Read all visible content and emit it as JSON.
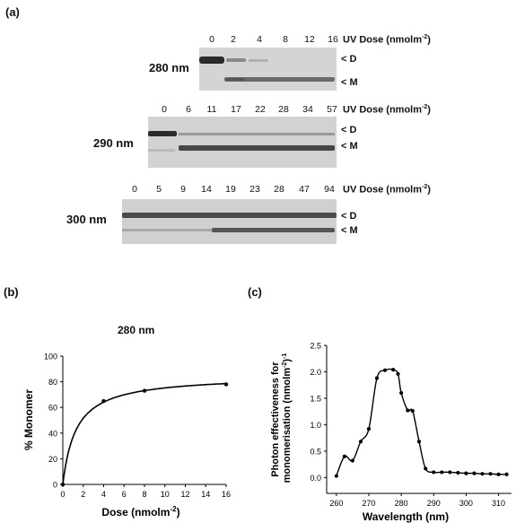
{
  "panel_a": {
    "label": "(a)",
    "uv_label": "UV Dose (nmolm",
    "uv_sup": "-2",
    "uv_close": ")",
    "band_d": "< D",
    "band_m": "< M",
    "gels": [
      {
        "wavelength": "280 nm",
        "doses": [
          "0",
          "2",
          "4",
          "8",
          "12",
          "16"
        ]
      },
      {
        "wavelength": "290 nm",
        "doses": [
          "0",
          "6",
          "11",
          "17",
          "22",
          "28",
          "34",
          "57"
        ]
      },
      {
        "wavelength": "300 nm",
        "doses": [
          "0",
          "5",
          "9",
          "14",
          "19",
          "23",
          "28",
          "47",
          "94"
        ]
      }
    ]
  },
  "panel_b": {
    "label": "(b)",
    "title": "280 nm",
    "ylabel": "% Monomer",
    "xlabel_main": "Dose (nmolm",
    "xlabel_sup": "-2",
    "xlabel_close": ")"
  },
  "panel_c": {
    "label": "(c)",
    "ylabel_line1": "Photon effectiveness for",
    "ylabel_line2": "monomerisation (nmolm",
    "ylabel_sup": "-2",
    "ylabel_close": ")",
    "ylabel_sup2": "-1",
    "xlabel": "Wavelength (nm)"
  },
  "chart_data": [
    {
      "type": "scatter",
      "title": "280 nm",
      "xlabel": "Dose (nmolm-2)",
      "ylabel": "% Monomer",
      "x": [
        0,
        4,
        8,
        16
      ],
      "y": [
        0,
        65,
        73,
        78
      ],
      "xlim": [
        0,
        16
      ],
      "ylim": [
        0,
        100
      ],
      "xticks": [
        "0",
        "2",
        "4",
        "6",
        "8",
        "10",
        "12",
        "14",
        "16"
      ],
      "yticks": [
        "0",
        "20",
        "40",
        "60",
        "80",
        "100"
      ],
      "fit": "hyperbolic saturation curve through points",
      "grid": false
    },
    {
      "type": "line",
      "xlabel": "Wavelength (nm)",
      "ylabel": "Photon effectiveness for monomerisation (nmolm-2)-1",
      "x": [
        260,
        262.5,
        265,
        267.5,
        270,
        272.5,
        275,
        277.5,
        279,
        280,
        282,
        283.5,
        285.5,
        287.5,
        290,
        292.5,
        295,
        297.5,
        300,
        302.5,
        305,
        307.5,
        310,
        312.5
      ],
      "y": [
        0.03,
        0.4,
        0.32,
        0.68,
        0.92,
        1.88,
        2.03,
        2.04,
        1.96,
        1.6,
        1.27,
        1.26,
        0.68,
        0.17,
        0.1,
        0.1,
        0.1,
        0.09,
        0.08,
        0.08,
        0.07,
        0.07,
        0.06,
        0.06
      ],
      "xlim": [
        257,
        314
      ],
      "ylim": [
        -0.3,
        2.5
      ],
      "xticks": [
        "260",
        "270",
        "280",
        "290",
        "300",
        "310"
      ],
      "yticks": [
        "0.0",
        "0.5",
        "1.0",
        "1.5",
        "2.0",
        "2.5"
      ],
      "grid": false
    }
  ]
}
